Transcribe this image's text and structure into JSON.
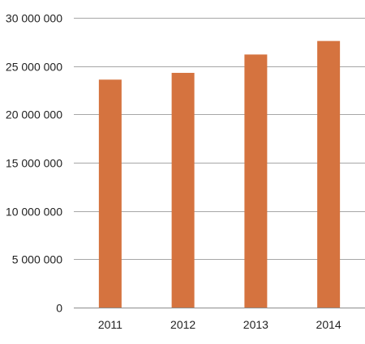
{
  "chart_data": {
    "type": "bar",
    "title": "",
    "xlabel": "",
    "ylabel": "",
    "categories": [
      "2011",
      "2012",
      "2013",
      "2014"
    ],
    "values": [
      23600000,
      24300000,
      26200000,
      27600000
    ],
    "ylim": [
      0,
      30000000
    ],
    "y_ticks": [
      0,
      5000000,
      10000000,
      15000000,
      20000000,
      25000000,
      30000000
    ],
    "y_tick_labels": [
      "0",
      "5 000 000",
      "10 000 000",
      "15 000 000",
      "20 000 000",
      "25 000 000",
      "30 000 000"
    ],
    "grid": true,
    "legend": "none",
    "bar_color": "#D5733F",
    "grid_color": "#A6A6A6"
  }
}
